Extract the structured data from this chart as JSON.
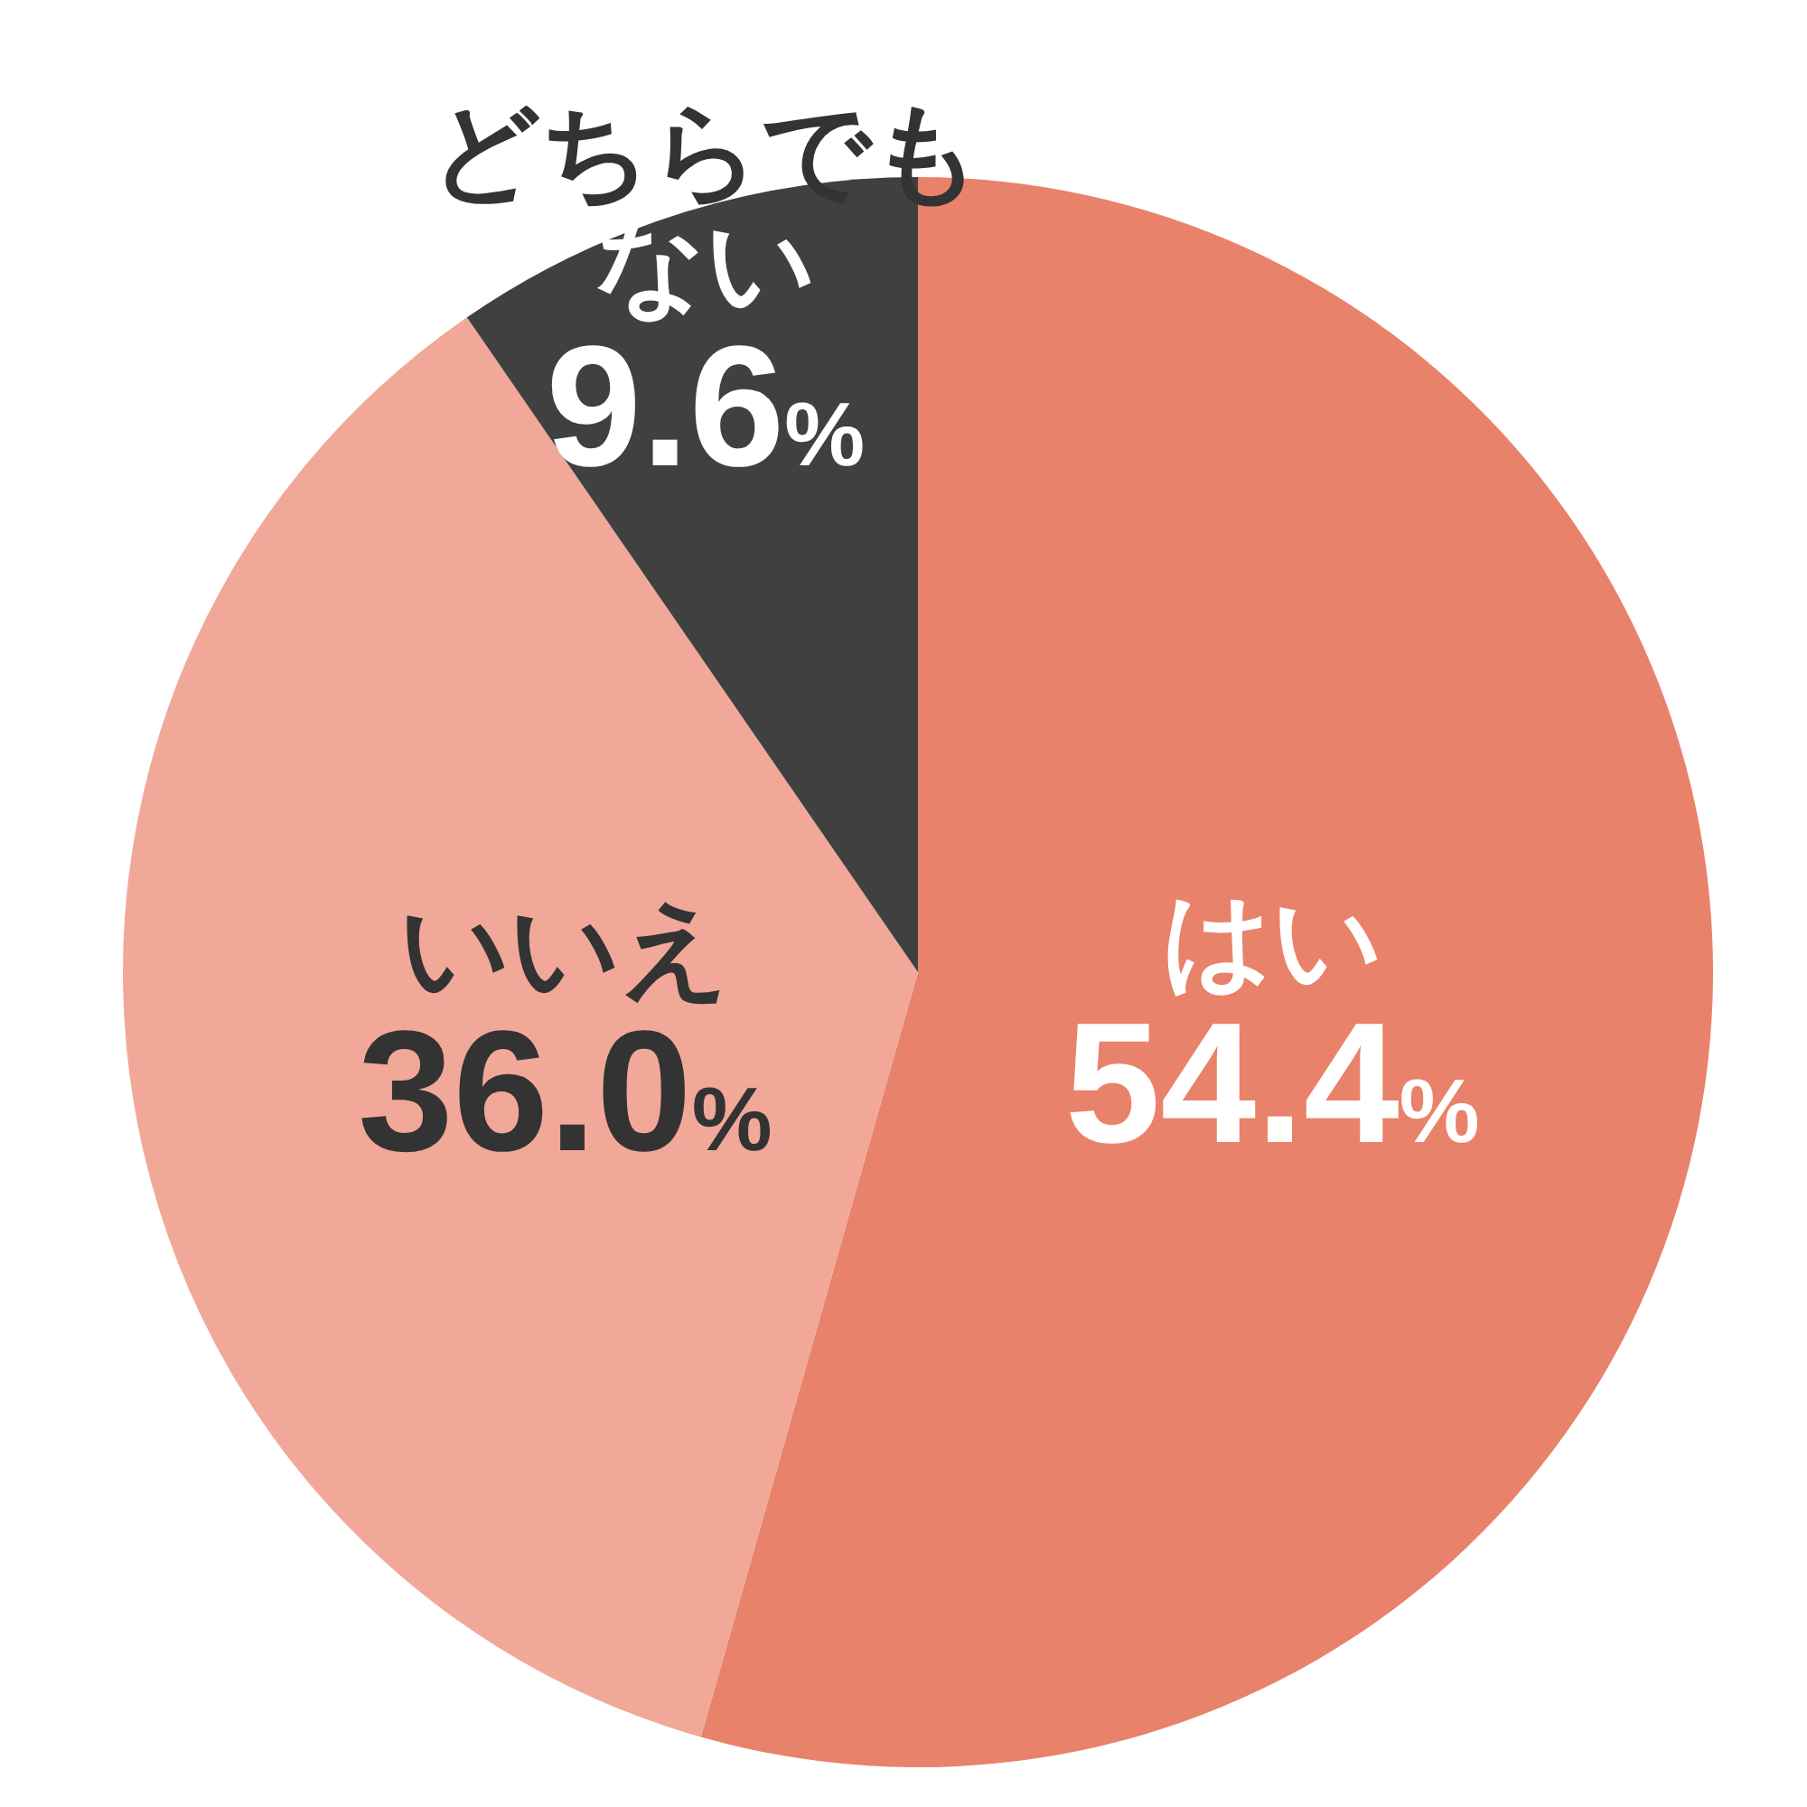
{
  "chart_data": {
    "type": "pie",
    "categories": [
      "はい",
      "いいえ",
      "どちらでもない"
    ],
    "values": [
      54.4,
      36.0,
      9.6
    ],
    "value_labels": [
      "54.4%",
      "36.0%",
      "9.6%"
    ],
    "colors": [
      "#e9826a",
      "#f1a898",
      "#404040"
    ]
  }
}
